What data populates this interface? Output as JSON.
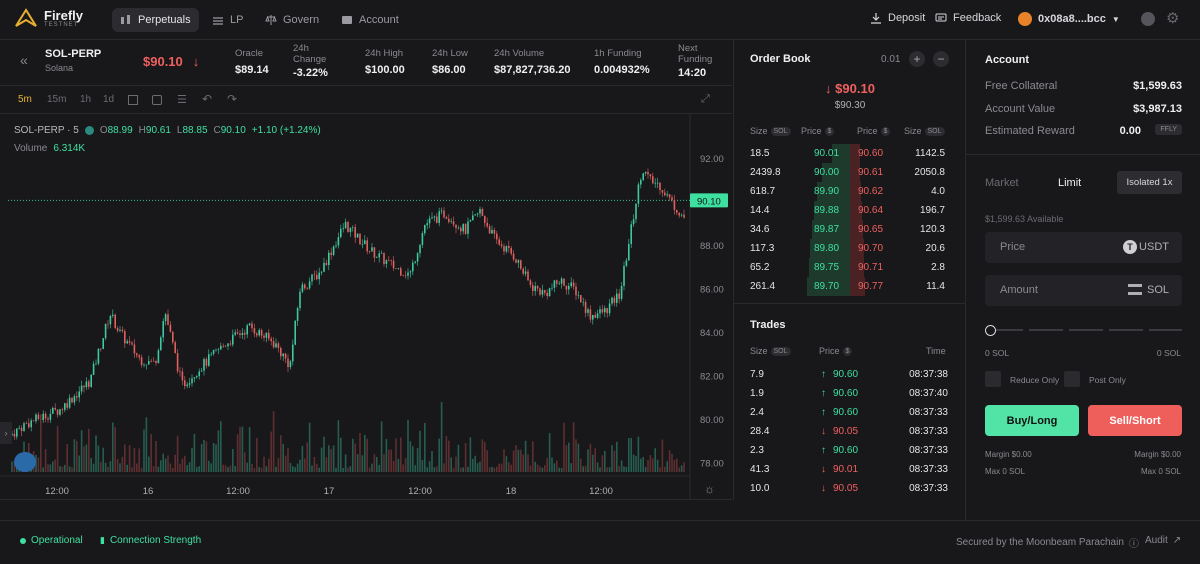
{
  "brand": {
    "name": "Firefly",
    "sub": "TESTNET"
  },
  "nav": {
    "tabs": [
      {
        "label": "Perpetuals",
        "active": true
      },
      {
        "label": "LP"
      },
      {
        "label": "Govern"
      },
      {
        "label": "Account"
      }
    ],
    "deposit": "Deposit",
    "feedback": "Feedback",
    "wallet": "0x08a8....bcc"
  },
  "ticker": {
    "market": "SOL-PERP",
    "sub": "Solana",
    "price": "$90.10",
    "stats": [
      {
        "label": "Oracle",
        "value": "$89.14"
      },
      {
        "label": "24h Change",
        "value": "-3.22%"
      },
      {
        "label": "24h High",
        "value": "$100.00"
      },
      {
        "label": "24h Low",
        "value": "$86.00"
      },
      {
        "label": "24h Volume",
        "value": "$87,827,736.20"
      },
      {
        "label": "1h Funding",
        "value": "0.004932%"
      },
      {
        "label": "Next Funding",
        "value": "14:20"
      }
    ]
  },
  "timeframes": [
    "5m",
    "15m",
    "1h",
    "1d"
  ],
  "chart": {
    "symbol": "SOL-PERP · 5",
    "ohlc": {
      "o": "88.99",
      "h": "90.61",
      "l": "88.85",
      "c": "90.10",
      "chg": "+1.10 (+1.24%)"
    },
    "volume_label": "Volume",
    "volume_value": "6.314K",
    "y_ticks": [
      "92.00",
      "90.00",
      "88.00",
      "86.00",
      "84.00",
      "82.00",
      "80.00",
      "78.00"
    ],
    "last_price": "90.10",
    "x_ticks": [
      "12:00",
      "16",
      "12:00",
      "17",
      "12:00",
      "18",
      "12:00"
    ]
  },
  "orderbook": {
    "title": "Order Book",
    "tick": "0.01",
    "last": "$90.10",
    "mark": "$90.30",
    "h_size": "Size",
    "h_price": "Price",
    "unit_sol": "SOL",
    "unit_usd": "$",
    "rows": [
      {
        "bsize": "18.5",
        "bprice": "90.01",
        "aprice": "90.60",
        "asize": "1142.5",
        "bd": 0.0,
        "ad": 0.05
      },
      {
        "bsize": "2439.8",
        "bprice": "90.00",
        "aprice": "90.61",
        "asize": "2050.8",
        "bd": 0.1,
        "ad": 0.05
      },
      {
        "bsize": "618.7",
        "bprice": "89.90",
        "aprice": "90.62",
        "asize": "4.0",
        "bd": 0.15,
        "ad": 0.06
      },
      {
        "bsize": "14.4",
        "bprice": "89.88",
        "aprice": "90.64",
        "asize": "196.7",
        "bd": 0.18,
        "ad": 0.07
      },
      {
        "bsize": "34.6",
        "bprice": "89.87",
        "aprice": "90.65",
        "asize": "120.3",
        "bd": 0.2,
        "ad": 0.08
      },
      {
        "bsize": "117.3",
        "bprice": "89.80",
        "aprice": "90.70",
        "asize": "20.6",
        "bd": 0.22,
        "ad": 0.09
      },
      {
        "bsize": "65.2",
        "bprice": "89.75",
        "aprice": "90.71",
        "asize": "2.8",
        "bd": 0.23,
        "ad": 0.09
      },
      {
        "bsize": "261.4",
        "bprice": "89.70",
        "aprice": "90.77",
        "asize": "11.4",
        "bd": 0.25,
        "ad": 0.1
      }
    ]
  },
  "trades": {
    "title": "Trades",
    "h_size": "Size",
    "h_price": "Price",
    "h_time": "Time",
    "rows": [
      {
        "size": "7.9",
        "price": "90.60",
        "side": "up",
        "time": "08:37:38"
      },
      {
        "size": "1.9",
        "price": "90.60",
        "side": "up",
        "time": "08:37:40"
      },
      {
        "size": "2.4",
        "price": "90.60",
        "side": "up",
        "time": "08:37:33"
      },
      {
        "size": "28.4",
        "price": "90.05",
        "side": "down",
        "time": "08:37:33"
      },
      {
        "size": "2.3",
        "price": "90.60",
        "side": "up",
        "time": "08:37:33"
      },
      {
        "size": "41.3",
        "price": "90.01",
        "side": "down",
        "time": "08:37:33"
      },
      {
        "size": "10.0",
        "price": "90.05",
        "side": "down",
        "time": "08:37:33"
      }
    ]
  },
  "account": {
    "title": "Account",
    "rows": [
      {
        "label": "Free Collateral",
        "value": "$1,599.63"
      },
      {
        "label": "Account Value",
        "value": "$3,987.13"
      },
      {
        "label": "Estimated Reward",
        "value": "0.00",
        "unit": "FFLY"
      }
    ],
    "tab_market": "Market",
    "tab_limit": "Limit",
    "leverage": "Isolated 1x",
    "available": "$1,599.63 Available",
    "price_ph": "Price",
    "price_unit": "USDT",
    "amount_ph": "Amount",
    "amount_unit": "SOL",
    "slider_min": "0 SOL",
    "slider_max": "0 SOL",
    "reduce_only": "Reduce Only",
    "post_only": "Post Only",
    "buy": "Buy/Long",
    "sell": "Sell/Short",
    "margin_l": "Margin $0.00",
    "margin_r": "Margin $0.00",
    "max_l": "Max 0 SOL",
    "max_r": "Max 0 SOL"
  },
  "status": {
    "operational": "Operational",
    "connection": "Connection Strength",
    "secured": "Secured by the Moonbeam Parachain",
    "audit": "Audit"
  },
  "colors": {
    "green": "#3ee0a0",
    "red": "#f0605e",
    "bg": "#18181b"
  }
}
